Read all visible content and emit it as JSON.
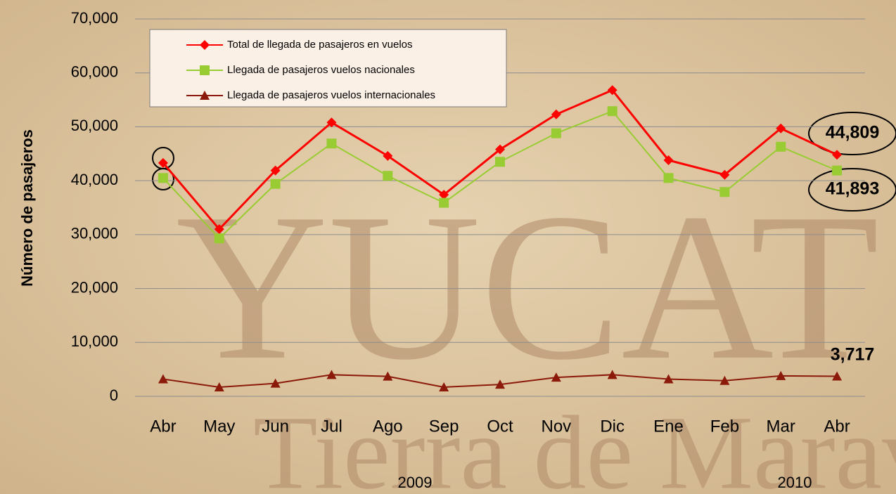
{
  "chart_data": {
    "type": "line",
    "ylabel": "Número de pasajeros",
    "categories": [
      "Abr",
      "May",
      "Jun",
      "Jul",
      "Ago",
      "Sep",
      "Oct",
      "Nov",
      "Dic",
      "Ene",
      "Feb",
      "Mar",
      "Abr"
    ],
    "years": [
      "2009",
      "2010"
    ],
    "watermark": [
      "YUCAT",
      "Tierra de Marav"
    ],
    "series": [
      {
        "name": "Total de llegada de pasajeros en vuelos",
        "color": "#ff0000",
        "marker": "diamond",
        "values": [
          43300,
          31000,
          41900,
          50800,
          44600,
          37400,
          45800,
          52300,
          56800,
          43800,
          41100,
          49700,
          44809
        ],
        "value_labels": [
          null,
          null,
          null,
          null,
          null,
          null,
          null,
          null,
          null,
          null,
          null,
          null,
          "44,809"
        ]
      },
      {
        "name": "Llegada de pasajeros vuelos nacionales",
        "color": "#99cc33",
        "marker": "square",
        "values": [
          40500,
          29300,
          39400,
          46900,
          40900,
          35900,
          43500,
          48800,
          52900,
          40500,
          37900,
          46300,
          41893
        ],
        "value_labels": [
          null,
          null,
          null,
          null,
          null,
          null,
          null,
          null,
          null,
          null,
          null,
          null,
          "41,893"
        ]
      },
      {
        "name": "Llegada de pasajeros vuelos internacionales",
        "color": "#8b1a0a",
        "marker": "triangle",
        "values": [
          3200,
          1700,
          2400,
          4000,
          3700,
          1700,
          2200,
          3500,
          4000,
          3200,
          2900,
          3800,
          3717
        ],
        "value_labels": [
          null,
          null,
          null,
          null,
          null,
          null,
          null,
          null,
          null,
          null,
          null,
          null,
          "3,717"
        ]
      }
    ],
    "ylim": [
      0,
      70000
    ],
    "yticks": [
      0,
      {
        "value": 10000,
        "label": "10,000"
      },
      {
        "value": 20000,
        "label": "20,000"
      },
      {
        "value": 30000,
        "label": "30,000"
      },
      {
        "value": 40000,
        "label": "40,000"
      },
      {
        "value": 50000,
        "label": "50,000"
      },
      {
        "value": 60000,
        "label": "60,000"
      },
      {
        "value": 70000,
        "label": "70,000"
      }
    ],
    "grid": true,
    "legend": "upper left"
  }
}
